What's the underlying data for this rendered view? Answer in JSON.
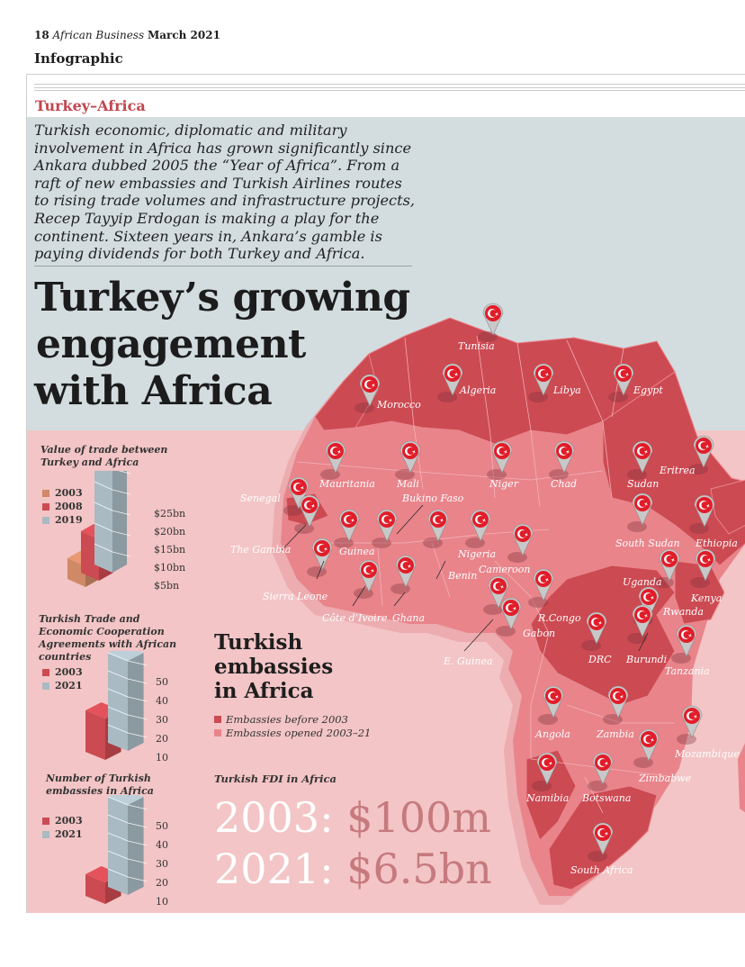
{
  "header": {
    "page_number": "18",
    "magazine": "African Business",
    "date": "March 2021",
    "section": "Infographic"
  },
  "article": {
    "kicker": "Turkey–Africa",
    "intro": "Turkish economic, diplomatic and military involvement in Africa has grown significantly since Ankara dubbed 2005 the “Year of Africa”. From a raft of new embassies and Turkish Airlines routes to rising trade volumes and infrastructure projects, Recep Tayyip Erdogan is making a play for the continent. Sixteen years in, Ankara’s gamble is paying dividends for both Turkey and Africa.",
    "headline_lines": [
      "Turkey’s growing",
      "engagement",
      "with Africa"
    ]
  },
  "colors": {
    "dark_red": "#cc4a52",
    "light_red": "#e9848b",
    "blue": "#a9bac3",
    "orange": "#cf8966",
    "pink_bg": "#f3c5c6",
    "blue_bg": "#d3dde0"
  },
  "chart_data": [
    {
      "type": "bar",
      "title": "Value of trade between Turkey and Africa",
      "categories": [
        "2003",
        "2008",
        "2019"
      ],
      "values": [
        5,
        10,
        25
      ],
      "unit": "$bn",
      "ticks": [
        "$25bn",
        "$20bn",
        "$15bn",
        "$10bn",
        "$5bn"
      ],
      "ylim": [
        0,
        25
      ]
    },
    {
      "type": "bar",
      "title": "Turkish Trade and Economic Cooperation Agreements with African countries",
      "categories": [
        "2003",
        "2021"
      ],
      "values": [
        23,
        50
      ],
      "ticks": [
        "50",
        "40",
        "30",
        "20",
        "10"
      ],
      "ylim": [
        0,
        50
      ]
    },
    {
      "type": "bar",
      "title": "Number of Turkish embassies in Africa",
      "categories": [
        "2003",
        "2021"
      ],
      "values": [
        12,
        50
      ],
      "ticks": [
        "50",
        "40",
        "30",
        "20",
        "10"
      ],
      "ylim": [
        0,
        50
      ]
    }
  ],
  "embassies": {
    "title_lines": [
      "Turkish",
      "embassies",
      "in Africa"
    ],
    "legend": [
      "Embassies before 2003",
      "Embassies opened 2003–21"
    ]
  },
  "fdi": {
    "title": "Turkish FDI in Africa",
    "rows": [
      {
        "year": "2003:",
        "amount": "$100m"
      },
      {
        "year": "2021:",
        "amount": "$6.5bn"
      }
    ]
  },
  "countries": {
    "tunisia": "Tunisia",
    "morocco": "Morocco",
    "algeria": "Algeria",
    "libya": "Libya",
    "egypt": "Egypt",
    "mauritania": "Mauritania",
    "mali": "Mali",
    "niger": "Niger",
    "chad": "Chad",
    "sudan": "Sudan",
    "eritrea": "Eritrea",
    "senegal": "Senegal",
    "bukino_faso": "Bukino Faso",
    "the_gambia": "The Gambia",
    "guinea": "Guinea",
    "nigeria": "Nigeria",
    "south_sudan": "South Sudan",
    "ethiopia": "Ethiopia",
    "cameroon": "Cameroon",
    "benin": "Benin",
    "sierra_leone": "Sierra Leone",
    "cote_divoire": "Côte d’Ivoire",
    "ghana": "Ghana",
    "uganda": "Uganda",
    "kenya": "Kenya",
    "rwanda": "Rwanda",
    "r_congo": "R.Congo",
    "gabon": "Gabon",
    "drc": "DRC",
    "burundi": "Burundi",
    "tanzania": "Tanzania",
    "e_guinea": "E. Guinea",
    "angola": "Angola",
    "zambia": "Zambia",
    "mozambique": "Mozambique",
    "zimbabwe": "Zimbabwe",
    "namibia": "Namibia",
    "botswana": "Botswana",
    "south_africa": "South Africa"
  }
}
